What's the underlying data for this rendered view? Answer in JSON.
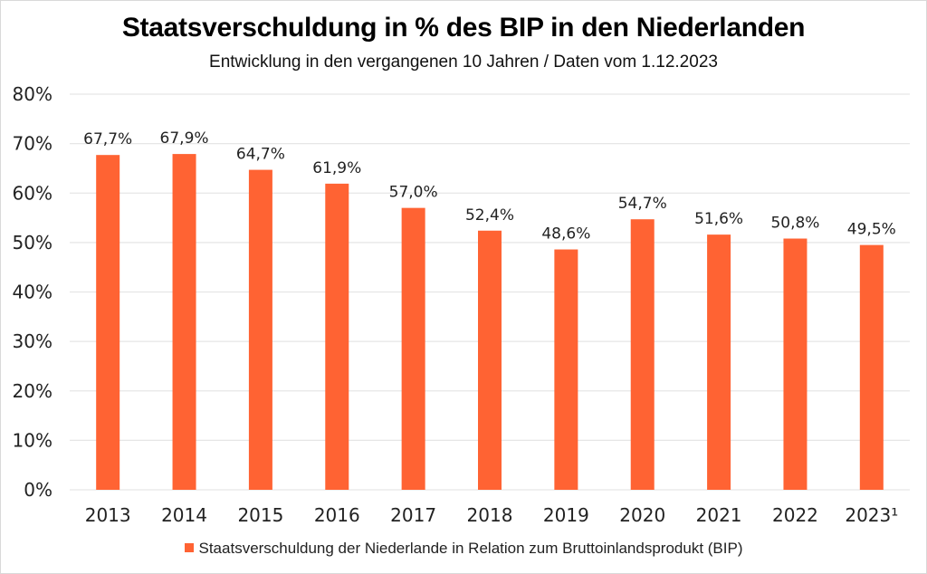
{
  "chart_data": {
    "type": "bar",
    "title": "Staatsverschuldung in % des BIP in den Niederlanden",
    "subtitle": "Entwicklung in den vergangenen 10 Jahren / Daten vom 1.12.2023",
    "xlabel": "",
    "ylabel": "",
    "categories": [
      "2013",
      "2014",
      "2015",
      "2016",
      "2017",
      "2018",
      "2019",
      "2020",
      "2021",
      "2022",
      "2023¹"
    ],
    "series": [
      {
        "name": "Staatsverschuldung der Niederlande in Relation zum Bruttoinlandsprodukt (BIP)",
        "values": [
          67.7,
          67.9,
          64.7,
          61.9,
          57.0,
          52.4,
          48.6,
          54.7,
          51.6,
          50.8,
          49.5
        ],
        "data_labels": [
          "67,7%",
          "67,9%",
          "64,7%",
          "61,9%",
          "57,0%",
          "52,4%",
          "48,6%",
          "54,7%",
          "51,6%",
          "50,8%",
          "49,5%"
        ],
        "color": "#ff6333"
      }
    ],
    "ylim": [
      0,
      80
    ],
    "yticks": [
      0,
      10,
      20,
      30,
      40,
      50,
      60,
      70,
      80
    ],
    "ytick_labels": [
      "0%",
      "10%",
      "20%",
      "30%",
      "40%",
      "50%",
      "60%",
      "70%",
      "80%"
    ],
    "grid": true,
    "legend_position": "bottom"
  },
  "colors": {
    "bar": "#ff6333",
    "grid": "#e6e6e6",
    "border": "#d9d9d9"
  }
}
